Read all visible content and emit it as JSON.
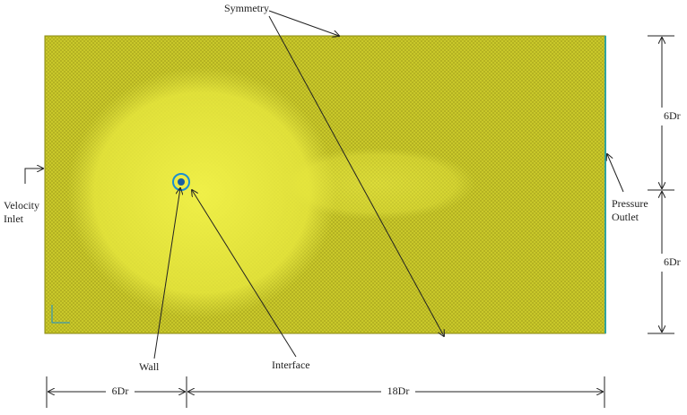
{
  "labels": {
    "symmetry": "Symmetry",
    "velocity_inlet": [
      "Velocity",
      "Inlet"
    ],
    "pressure_outlet": [
      "Pressure",
      "Outlet"
    ],
    "wall": "Wall",
    "interface": "Interface"
  },
  "dimensions": {
    "right_upper": "6Dr",
    "right_lower": "6Dr",
    "bottom_left": "6Dr",
    "bottom_right": "18Dr"
  }
}
